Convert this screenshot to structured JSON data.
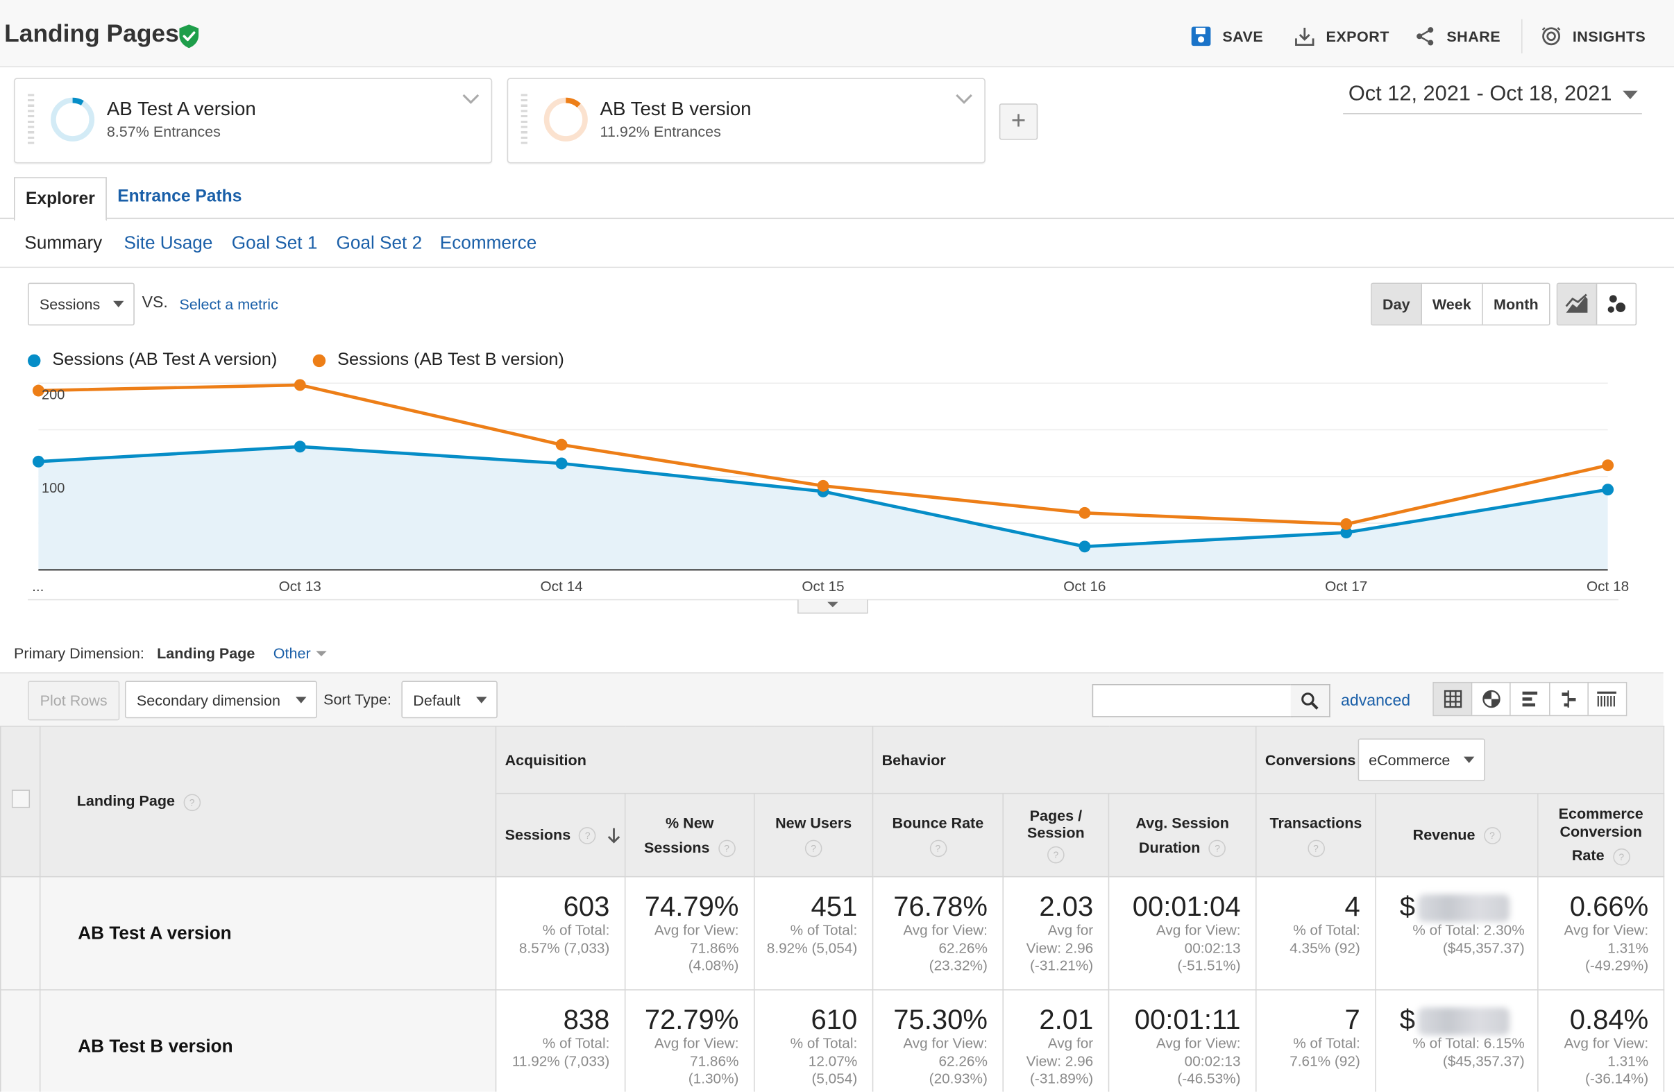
{
  "header": {
    "title": "Landing Pages",
    "save_label": "SAVE",
    "export_label": "EXPORT",
    "share_label": "SHARE",
    "insights_label": "INSIGHTS"
  },
  "segments": [
    {
      "name": "AB Test A version",
      "sub": "8.57% Entrances",
      "color": "#058dc7",
      "pct": 8.57
    },
    {
      "name": "AB Test B version",
      "sub": "11.92% Entrances",
      "color": "#ed7e17",
      "pct": 11.92
    }
  ],
  "add_segment_label": "+",
  "date_range": "Oct 12, 2021 - Oct 18, 2021",
  "tabs": {
    "explorer": "Explorer",
    "entrance_paths": "Entrance Paths"
  },
  "subtabs": [
    "Summary",
    "Site Usage",
    "Goal Set 1",
    "Goal Set 2",
    "Ecommerce"
  ],
  "controls": {
    "metric": "Sessions",
    "vs": "VS.",
    "select_metric": "Select a metric",
    "granularity": [
      "Day",
      "Week",
      "Month"
    ]
  },
  "chart_data": {
    "type": "line",
    "x": [
      "Oct 12",
      "Oct 13",
      "Oct 14",
      "Oct 15",
      "Oct 16",
      "Oct 17",
      "Oct 18"
    ],
    "x_tick_labels": [
      "...",
      "Oct 13",
      "Oct 14",
      "Oct 15",
      "Oct 16",
      "Oct 17",
      "Oct 18"
    ],
    "y_ticks": [
      "200",
      "100"
    ],
    "series": [
      {
        "name": "Sessions (AB Test A version)",
        "color": "#058dc7",
        "values": [
          116,
          132,
          114,
          84,
          25,
          40,
          86
        ],
        "area": true
      },
      {
        "name": "Sessions (AB Test B version)",
        "color": "#ed7e17",
        "values": [
          192,
          198,
          134,
          90,
          61,
          49,
          112
        ]
      }
    ],
    "ylim": [
      0,
      200
    ],
    "grid": true,
    "legend": "top-left"
  },
  "primary_dimension": {
    "label": "Primary Dimension:",
    "value": "Landing Page",
    "other": "Other"
  },
  "toolbar": {
    "plot_rows": "Plot Rows",
    "secondary_dimension": "Secondary dimension",
    "sort_type_label": "Sort Type:",
    "sort_type": "Default",
    "advanced": "advanced"
  },
  "table": {
    "groups": {
      "acquisition": "Acquisition",
      "behavior": "Behavior",
      "conversions": "Conversions",
      "conversions_select": "eCommerce"
    },
    "columns": {
      "landing_page": "Landing Page",
      "sessions": "Sessions",
      "new_sessions_1": "% New",
      "new_sessions_2": "Sessions",
      "new_users": "New Users",
      "bounce_rate": "Bounce Rate",
      "pages_1": "Pages /",
      "pages_2": "Session",
      "duration_1": "Avg. Session",
      "duration_2": "Duration",
      "transactions": "Transactions",
      "revenue": "Revenue",
      "conv_1": "Ecommerce",
      "conv_2": "Conversion",
      "conv_3": "Rate"
    },
    "rows": [
      {
        "name": "AB Test A version",
        "sessions": "603",
        "sessions_s1": "% of Total:",
        "sessions_s2": "8.57% (7,033)",
        "new_sessions": "74.79%",
        "new_sessions_s1": "Avg for View:",
        "new_sessions_s2": "71.86%",
        "new_sessions_s3": "(4.08%)",
        "new_users": "451",
        "new_users_s1": "% of Total:",
        "new_users_s2": "8.92% (5,054)",
        "bounce": "76.78%",
        "bounce_s1": "Avg for View:",
        "bounce_s2": "62.26%",
        "bounce_s3": "(23.32%)",
        "pages": "2.03",
        "pages_s1": "Avg for",
        "pages_s2": "View: 2.96",
        "pages_s3": "(-31.21%)",
        "duration": "00:01:04",
        "duration_s1": "Avg for View:",
        "duration_s2": "00:02:13",
        "duration_s3": "(-51.51%)",
        "transactions": "4",
        "transactions_s1": "% of Total:",
        "transactions_s2": "4.35% (92)",
        "revenue_prefix": "$",
        "revenue_s1": "% of Total: 2.30%",
        "revenue_s2": "($45,357.37)",
        "conv": "0.66%",
        "conv_s1": "Avg for View:",
        "conv_s2": "1.31%",
        "conv_s3": "(-49.29%)"
      },
      {
        "name": "AB Test B version",
        "sessions": "838",
        "sessions_s1": "% of Total:",
        "sessions_s2": "11.92% (7,033)",
        "new_sessions": "72.79%",
        "new_sessions_s1": "Avg for View:",
        "new_sessions_s2": "71.86%",
        "new_sessions_s3": "(1.30%)",
        "new_users": "610",
        "new_users_s1": "% of Total:",
        "new_users_s2": "12.07%",
        "new_users_s3": "(5,054)",
        "bounce": "75.30%",
        "bounce_s1": "Avg for View:",
        "bounce_s2": "62.26%",
        "bounce_s3": "(20.93%)",
        "pages": "2.01",
        "pages_s1": "Avg for",
        "pages_s2": "View: 2.96",
        "pages_s3": "(-31.89%)",
        "duration": "00:01:11",
        "duration_s1": "Avg for View:",
        "duration_s2": "00:02:13",
        "duration_s3": "(-46.53%)",
        "transactions": "7",
        "transactions_s1": "% of Total:",
        "transactions_s2": "7.61% (92)",
        "revenue_prefix": "$",
        "revenue_s1": "% of Total: 6.15%",
        "revenue_s2": "($45,357.37)",
        "conv": "0.84%",
        "conv_s1": "Avg for View:",
        "conv_s2": "1.31%",
        "conv_s3": "(-36.14%)"
      }
    ]
  }
}
